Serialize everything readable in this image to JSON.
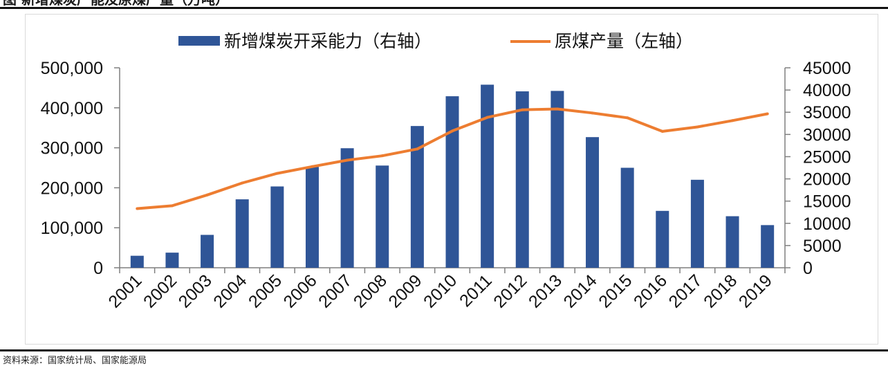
{
  "header": {
    "title": "图    新增煤炭产能及原煤产量（万吨）"
  },
  "footer": {
    "source": "资料来源：国家统计局、国家能源局"
  },
  "chart_data": {
    "type": "bar",
    "categories": [
      "2001",
      "2002",
      "2003",
      "2004",
      "2005",
      "2006",
      "2007",
      "2008",
      "2009",
      "2010",
      "2011",
      "2012",
      "2013",
      "2014",
      "2015",
      "2016",
      "2017",
      "2018",
      "2019"
    ],
    "series": [
      {
        "name": "新增煤炭开采能力（右轴）",
        "type": "bar",
        "axis": "right",
        "color": "#2f5597",
        "values": [
          2700,
          3400,
          7400,
          15400,
          18300,
          22700,
          26900,
          23000,
          31900,
          38600,
          41200,
          39700,
          39800,
          29400,
          22500,
          12800,
          19800,
          11600,
          9600
        ]
      },
      {
        "name": "原煤产量（左轴）",
        "type": "line",
        "axis": "left",
        "color": "#ed7d31",
        "values": [
          148000,
          155000,
          182000,
          212000,
          236000,
          253000,
          269000,
          280000,
          297000,
          342000,
          376000,
          395000,
          397000,
          387000,
          375000,
          341000,
          352000,
          368000,
          385000
        ]
      }
    ],
    "y_left": {
      "min": 0,
      "max": 500000,
      "ticks": [
        "0",
        "100,000",
        "200,000",
        "300,000",
        "400,000",
        "500,000"
      ]
    },
    "y_right": {
      "min": 0,
      "max": 45000,
      "ticks": [
        "0",
        "5000",
        "10000",
        "15000",
        "20000",
        "25000",
        "30000",
        "35000",
        "40000",
        "45000"
      ]
    },
    "legend_position": "top",
    "grid": false
  }
}
